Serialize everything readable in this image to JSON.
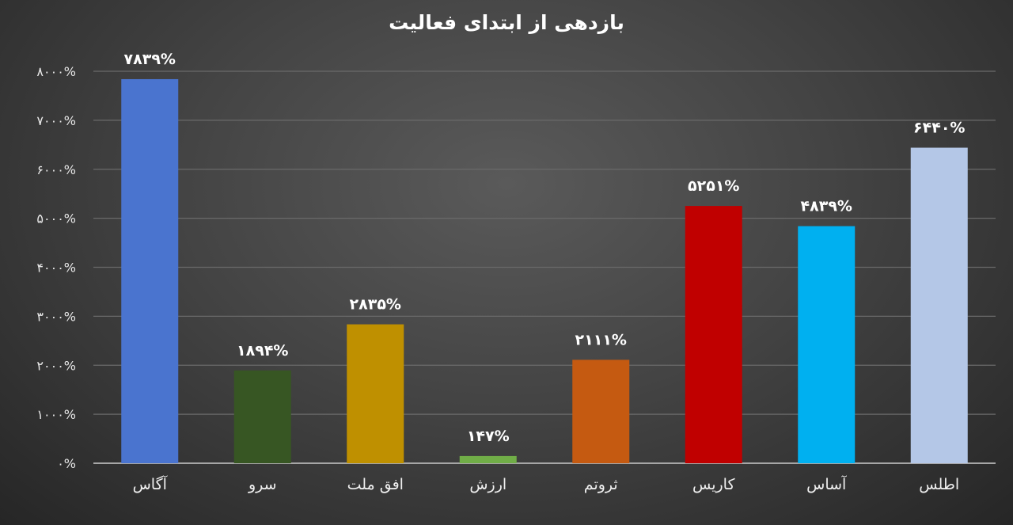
{
  "chart_data": {
    "type": "bar",
    "title": "بازدهی از ابتدای فعالیت",
    "xlabel": "",
    "ylabel": "",
    "ylim": [
      0,
      8000
    ],
    "grid": true,
    "legend": "none",
    "categories": [
      "آگاس",
      "سرو",
      "افق ملت",
      "ارزش",
      "ثروتم",
      "کاریس",
      "آساس",
      "اطلس"
    ],
    "values": [
      7839,
      1894,
      2835,
      147,
      2111,
      5251,
      4839,
      6440
    ],
    "value_labels": [
      "۷۸۳۹%",
      "۱۸۹۴%",
      "۲۸۳۵%",
      "۱۴۷%",
      "۲۱۱۱%",
      "۵۲۵۱%",
      "۴۸۳۹%",
      "۶۴۴۰%"
    ],
    "colors": [
      "#4a74cf",
      "#375623",
      "#bf9000",
      "#70ad47",
      "#c55a11",
      "#c00000",
      "#00b0f0",
      "#b4c7e7"
    ],
    "yticks": [
      0,
      1000,
      2000,
      3000,
      4000,
      5000,
      6000,
      7000,
      8000
    ],
    "ytick_labels": [
      "۰%",
      "۱۰۰۰%",
      "۲۰۰۰%",
      "۳۰۰۰%",
      "۴۰۰۰%",
      "۵۰۰۰%",
      "۶۰۰۰%",
      "۷۰۰۰%",
      "۸۰۰۰%"
    ]
  }
}
